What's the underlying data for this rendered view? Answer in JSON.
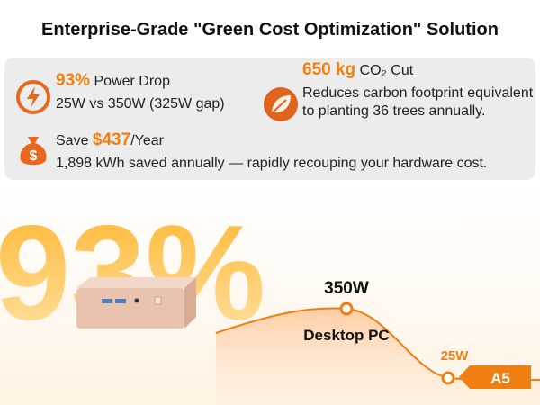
{
  "header": {
    "title": "Enterprise-Grade \"Green Cost Optimization\" Solution"
  },
  "stats": [
    {
      "highlight": "93%",
      "label": "Power Drop",
      "detail": "25W vs 350W (325W gap)"
    },
    {
      "highlight": "650 kg",
      "label": "CO₂ Cut",
      "detail": "Reduces carbon footprint equivalent to planting 36 trees annually."
    },
    {
      "prefix": "Save",
      "highlight": "$437",
      "suffix": "/Year",
      "detail": "1,898 kWh saved annually — rapidly recouping your hardware cost."
    }
  ],
  "hero": {
    "big_text": "93%",
    "desktop_power": "350W",
    "desktop_label": "Desktop PC",
    "a5_power": "25W",
    "a5_label": "A5"
  }
}
